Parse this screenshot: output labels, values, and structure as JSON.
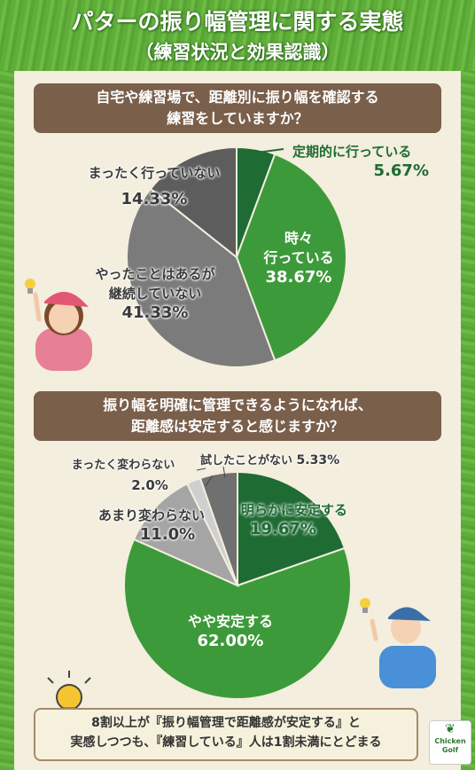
{
  "title": {
    "line1": "パターの振り幅管理に関する実態",
    "line2": "（練習状況と効果認識）"
  },
  "chart_data": [
    {
      "type": "pie",
      "question": [
        "自宅や練習場で、距離別に振り幅を確認する",
        "練習をしていますか？"
      ],
      "slices": [
        {
          "label": "定期的に行っている",
          "value": 5.67,
          "display": "5.67%",
          "color": "#1e6b34"
        },
        {
          "label": "時々行っている",
          "value": 38.67,
          "display": "38.67%",
          "color": "#3d9a3a"
        },
        {
          "label": "やったことはあるが継続していない",
          "value": 41.33,
          "display": "41.33%",
          "color": "#7b7b7b"
        },
        {
          "label": "まったく行っていない",
          "value": 14.33,
          "display": "14.33%",
          "color": "#5d5d5d"
        }
      ]
    },
    {
      "type": "pie",
      "question": [
        "振り幅を明確に管理できるようになれば、",
        "距離感は安定すると感じますか？"
      ],
      "slices": [
        {
          "label": "明らかに安定する",
          "value": 19.67,
          "display": "19.67%",
          "color": "#1e6b34"
        },
        {
          "label": "やや安定する",
          "value": 62.0,
          "display": "62.00%",
          "color": "#3d9a3a"
        },
        {
          "label": "あまり変わらない",
          "value": 11.0,
          "display": "11.0%",
          "color": "#a5a5a5"
        },
        {
          "label": "まったく変わらない",
          "value": 2.0,
          "display": "2.0%",
          "color": "#cfcfcf"
        },
        {
          "label": "試したことがない",
          "value": 5.33,
          "display": "5.33%",
          "color": "#707070"
        }
      ]
    }
  ],
  "labels": {
    "c1": {
      "teiki": "定期的に行っている",
      "teiki_pct": "5.67%",
      "tokidoki1": "時々",
      "tokidoki2": "行っている",
      "tokidoki_pct": "38.67%",
      "keizoku1": "やったことはあるが",
      "keizoku2": "継続していない",
      "keizoku_pct": "41.33%",
      "mattaku": "まったく行っていない",
      "mattaku_pct": "14.33%"
    },
    "c2": {
      "akiraka": "明らかに安定する",
      "akiraka_pct": "19.67%",
      "yaya": "やや安定する",
      "yaya_pct": "62.00%",
      "amari": "あまり変わらない",
      "amari_pct": "11.0%",
      "mattaku": "まったく変わらない",
      "mattaku_pct": "2.0%",
      "tameshi": "試したことがない",
      "tameshi_pct": "5.33%"
    }
  },
  "summary": {
    "line1": "8割以上が『振り幅管理で距離感が安定する』と",
    "line2": "実感しつつも、『練習している』人は1割未満にとどまる"
  },
  "logo": {
    "line1": "Chicken",
    "line2": "Golf"
  }
}
